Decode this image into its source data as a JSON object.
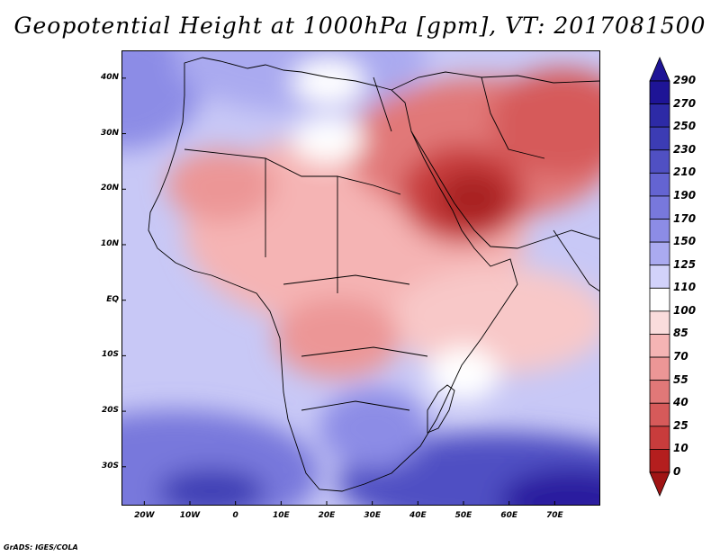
{
  "title": "Geopotential Height at 1000hPa [gpm], VT: 2017081500",
  "footer": "GrADS: IGES/COLA",
  "map": {
    "lon_range": [
      -25,
      80
    ],
    "lat_range": [
      -37,
      45
    ],
    "lat_ticks": [
      {
        "value": 40,
        "label": "40N"
      },
      {
        "value": 30,
        "label": "30N"
      },
      {
        "value": 20,
        "label": "20N"
      },
      {
        "value": 10,
        "label": "10N"
      },
      {
        "value": 0,
        "label": "EQ"
      },
      {
        "value": -10,
        "label": "10S"
      },
      {
        "value": -20,
        "label": "20S"
      },
      {
        "value": -30,
        "label": "30S"
      }
    ],
    "lon_ticks": [
      {
        "value": -20,
        "label": "20W"
      },
      {
        "value": -10,
        "label": "10W"
      },
      {
        "value": 0,
        "label": "0"
      },
      {
        "value": 10,
        "label": "10E"
      },
      {
        "value": 20,
        "label": "20E"
      },
      {
        "value": 30,
        "label": "30E"
      },
      {
        "value": 40,
        "label": "40E"
      },
      {
        "value": 50,
        "label": "50E"
      },
      {
        "value": 60,
        "label": "60E"
      },
      {
        "value": 70,
        "label": "70E"
      }
    ]
  },
  "colorbar": {
    "levels": [
      "290",
      "270",
      "250",
      "230",
      "210",
      "190",
      "170",
      "150",
      "125",
      "110",
      "100",
      "85",
      "70",
      "55",
      "40",
      "25",
      "10",
      "0"
    ],
    "colors": [
      "#1e1496",
      "#2d2aa6",
      "#3c3cb4",
      "#5050c3",
      "#6464d2",
      "#7878dc",
      "#8c8ce6",
      "#aaaaf0",
      "#d2d2fa",
      "#ffffff",
      "#fadcdc",
      "#f5b4b4",
      "#ec9696",
      "#e17878",
      "#d65a5a",
      "#c83c3c",
      "#b41e1e"
    ]
  },
  "field_colors": {
    "deep_high": "#2a1f9f",
    "high": "#5a5ad0",
    "mid_high": "#9a9ae8",
    "light_high": "#c8c8f6",
    "neutral": "#ffffff",
    "light_low": "#f8c8c8",
    "low": "#e89090",
    "deep_low": "#c84848",
    "deepest_low": "#a82020"
  }
}
